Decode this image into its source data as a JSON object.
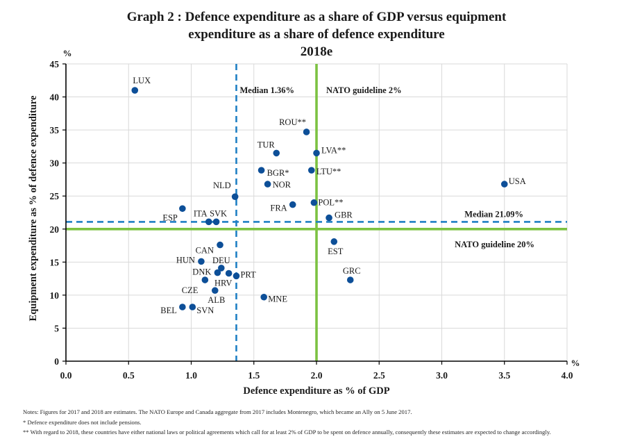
{
  "title": {
    "line1": "Graph 2 : Defence expenditure as a share of GDP versus equipment",
    "line2": "expenditure as a share of defence expenditure",
    "line3": "2018e"
  },
  "notes": {
    "line1": "Notes: Figures for 2017 and 2018 are estimates. The NATO Europe and Canada aggregate from 2017 includes Montenegro, which became an Ally on 5 June 2017.",
    "line2": "*   Defence expenditure does not include pensions.",
    "line3": "**  With regard to 2018, these countries have either national laws or political agreements which call for at least 2% of GDP to be spent on defence annually, consequently these estimates are expected to change accordingly."
  },
  "colors": {
    "point": "#0d4f98",
    "median_line": "#1f7fc4",
    "guideline_line": "#7cc242",
    "grid": "#d9d9d9",
    "axis": "#000000"
  },
  "chart_data": {
    "type": "scatter",
    "xlabel": "Defence expenditure as % of GDP",
    "ylabel": "Equipment expenditure as % of defence expenditure",
    "x_unit": "%",
    "y_unit": "%",
    "xlim": [
      0,
      4
    ],
    "ylim": [
      0,
      45
    ],
    "x_ticks": [
      "0.0",
      "0.5",
      "1.0",
      "1.5",
      "2.0",
      "2.5",
      "3.0",
      "3.5",
      "4.0"
    ],
    "y_ticks": [
      "0",
      "5",
      "10",
      "15",
      "20",
      "25",
      "30",
      "35",
      "40",
      "45"
    ],
    "grid": true,
    "points": [
      {
        "label": "LUX",
        "x": 0.55,
        "y": 41.0
      },
      {
        "label": "ROU**",
        "x": 1.92,
        "y": 34.7
      },
      {
        "label": "TUR",
        "x": 1.68,
        "y": 31.5
      },
      {
        "label": "LVA**",
        "x": 2.0,
        "y": 31.5
      },
      {
        "label": "BGR*",
        "x": 1.56,
        "y": 28.9
      },
      {
        "label": "LTU**",
        "x": 1.96,
        "y": 28.9
      },
      {
        "label": "NOR",
        "x": 1.61,
        "y": 26.8
      },
      {
        "label": "USA",
        "x": 3.5,
        "y": 26.8
      },
      {
        "label": "NLD",
        "x": 1.35,
        "y": 24.9
      },
      {
        "label": "FRA",
        "x": 1.81,
        "y": 23.7
      },
      {
        "label": "POL**",
        "x": 1.98,
        "y": 24.0
      },
      {
        "label": "ESP",
        "x": 0.93,
        "y": 23.1
      },
      {
        "label": "GBR",
        "x": 2.1,
        "y": 21.7
      },
      {
        "label": "ITA",
        "x": 1.14,
        "y": 21.1
      },
      {
        "label": "SVK",
        "x": 1.2,
        "y": 21.1
      },
      {
        "label": "CAN",
        "x": 1.23,
        "y": 17.6
      },
      {
        "label": "EST",
        "x": 2.14,
        "y": 18.1
      },
      {
        "label": "HUN",
        "x": 1.08,
        "y": 15.1
      },
      {
        "label": "DEU",
        "x": 1.24,
        "y": 14.1
      },
      {
        "label": "DNK",
        "x": 1.21,
        "y": 13.4
      },
      {
        "label": "PRT",
        "x": 1.36,
        "y": 12.9
      },
      {
        "label": "HRV",
        "x": 1.3,
        "y": 13.3
      },
      {
        "label": "CZE",
        "x": 1.11,
        "y": 12.3
      },
      {
        "label": "GRC",
        "x": 2.27,
        "y": 12.3
      },
      {
        "label": "ALB",
        "x": 1.19,
        "y": 10.7
      },
      {
        "label": "MNE",
        "x": 1.58,
        "y": 9.7
      },
      {
        "label": "BEL",
        "x": 0.93,
        "y": 8.2
      },
      {
        "label": "SVN",
        "x": 1.01,
        "y": 8.2
      }
    ],
    "reference_lines": [
      {
        "orientation": "vertical",
        "value": 1.36,
        "style": "dashed",
        "label": "Median 1.36%"
      },
      {
        "orientation": "vertical",
        "value": 2.0,
        "style": "solid",
        "label": "NATO guideline 2%"
      },
      {
        "orientation": "horizontal",
        "value": 21.09,
        "style": "dashed",
        "label": "Median 21.09%"
      },
      {
        "orientation": "horizontal",
        "value": 20,
        "style": "solid",
        "label": "NATO guideline 20%"
      }
    ]
  }
}
